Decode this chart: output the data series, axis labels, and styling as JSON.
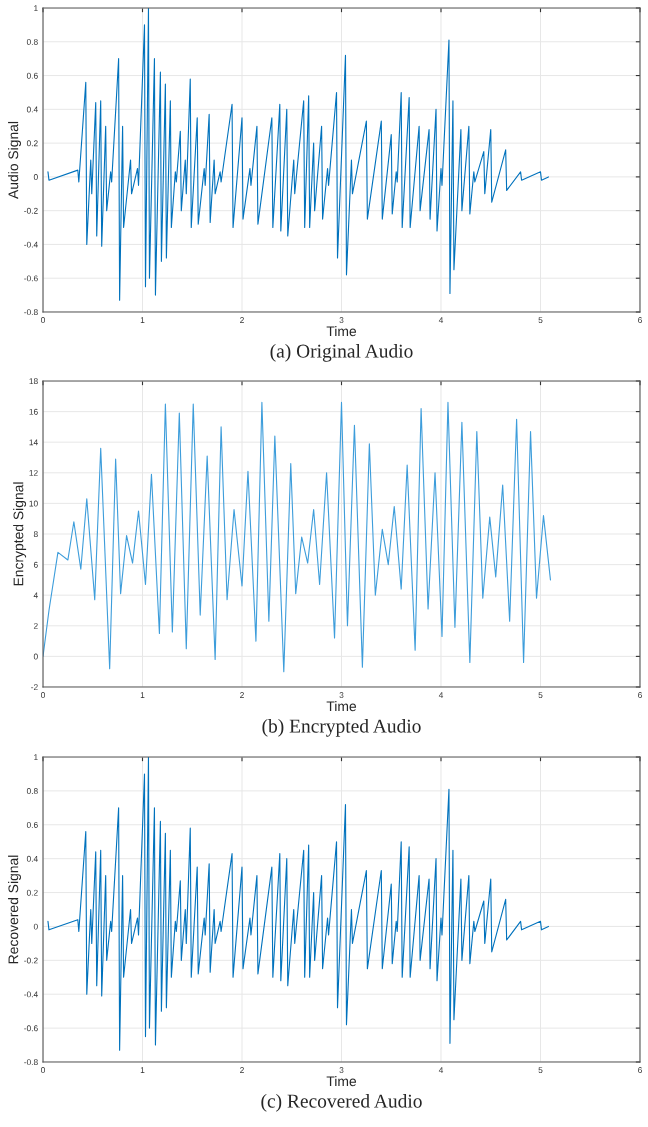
{
  "chart_data": [
    {
      "type": "line",
      "title": "(a) Original Audio",
      "xlabel": "Time",
      "ylabel": "Audio Signal",
      "xlim": [
        0,
        6
      ],
      "ylim": [
        -0.8,
        1
      ],
      "xticks": [
        0,
        1,
        2,
        3,
        4,
        5,
        6
      ],
      "yticks": [
        -0.8,
        -0.6,
        -0.4,
        -0.2,
        0,
        0.2,
        0.4,
        0.6,
        0.8,
        1
      ],
      "grid": true,
      "series": [
        {
          "color": "#0072bd",
          "x": [
            0.05,
            0.06,
            0.35,
            0.36,
            0.43,
            0.44,
            0.48,
            0.49,
            0.53,
            0.54,
            0.58,
            0.59,
            0.63,
            0.64,
            0.68,
            0.69,
            0.76,
            0.77,
            0.8,
            0.81,
            0.88,
            0.89,
            0.95,
            0.96,
            1.02,
            1.03,
            1.06,
            1.07,
            1.12,
            1.13,
            1.18,
            1.19,
            1.23,
            1.24,
            1.28,
            1.29,
            1.33,
            1.34,
            1.38,
            1.39,
            1.43,
            1.44,
            1.48,
            1.49,
            1.55,
            1.56,
            1.62,
            1.63,
            1.67,
            1.68,
            1.72,
            1.73,
            1.78,
            1.79,
            1.9,
            1.91,
            2.0,
            2.01,
            2.08,
            2.09,
            2.15,
            2.16,
            2.3,
            2.31,
            2.38,
            2.39,
            2.45,
            2.46,
            2.52,
            2.53,
            2.62,
            2.63,
            2.67,
            2.68,
            2.72,
            2.73,
            2.8,
            2.81,
            2.86,
            2.87,
            2.95,
            2.96,
            3.04,
            3.05,
            3.1,
            3.11,
            3.25,
            3.26,
            3.4,
            3.41,
            3.5,
            3.51,
            3.55,
            3.56,
            3.6,
            3.61,
            3.68,
            3.69,
            3.78,
            3.79,
            3.88,
            3.89,
            3.95,
            3.96,
            4.0,
            4.01,
            4.08,
            4.09,
            4.12,
            4.13,
            4.2,
            4.21,
            4.28,
            4.29,
            4.33,
            4.34,
            4.43,
            4.44,
            4.5,
            4.51,
            4.65,
            4.66,
            4.8,
            4.81,
            5.0,
            5.01,
            5.08
          ],
          "values": [
            0.03,
            -0.02,
            0.04,
            -0.03,
            0.56,
            -0.4,
            0.1,
            -0.1,
            0.44,
            -0.35,
            0.45,
            -0.41,
            0.3,
            -0.2,
            0.03,
            -0.03,
            0.7,
            -0.73,
            0.3,
            -0.3,
            0.1,
            -0.1,
            0.05,
            -0.05,
            0.9,
            -0.65,
            1.0,
            -0.6,
            0.7,
            -0.7,
            0.62,
            -0.5,
            0.55,
            -0.48,
            0.45,
            -0.3,
            0.03,
            -0.03,
            0.27,
            -0.2,
            0.1,
            -0.1,
            0.58,
            -0.3,
            0.35,
            -0.28,
            0.05,
            -0.05,
            0.37,
            -0.27,
            0.1,
            -0.1,
            0.03,
            -0.03,
            0.43,
            -0.3,
            0.35,
            -0.25,
            0.05,
            -0.05,
            0.3,
            -0.28,
            0.35,
            -0.3,
            0.43,
            -0.32,
            0.4,
            -0.35,
            0.1,
            -0.1,
            0.45,
            -0.3,
            0.48,
            -0.3,
            0.2,
            -0.2,
            0.3,
            -0.25,
            0.05,
            -0.05,
            0.5,
            -0.48,
            0.72,
            -0.58,
            0.1,
            -0.1,
            0.33,
            -0.25,
            0.33,
            -0.25,
            0.25,
            -0.22,
            0.03,
            -0.03,
            0.5,
            -0.3,
            0.47,
            -0.3,
            0.3,
            -0.2,
            0.28,
            -0.25,
            0.4,
            -0.32,
            0.05,
            -0.05,
            0.81,
            -0.69,
            0.45,
            -0.55,
            0.28,
            -0.2,
            0.3,
            -0.22,
            0.03,
            -0.03,
            0.15,
            -0.1,
            0.28,
            -0.15,
            0.16,
            -0.08,
            0.03,
            -0.02,
            0.03,
            -0.02,
            0
          ]
        }
      ]
    },
    {
      "type": "line",
      "title": "(b) Encrypted Audio",
      "xlabel": "Time",
      "ylabel": "Encrypted Signal",
      "xlim": [
        0,
        6
      ],
      "ylim": [
        -2,
        18
      ],
      "xticks": [
        0,
        1,
        2,
        3,
        4,
        5,
        6
      ],
      "yticks": [
        -2,
        0,
        2,
        4,
        6,
        8,
        10,
        12,
        14,
        16,
        18
      ],
      "grid": true,
      "series": [
        {
          "color": "#3d9ddb",
          "x": [
            0,
            0.06,
            0.15,
            0.25,
            0.31,
            0.38,
            0.44,
            0.52,
            0.58,
            0.67,
            0.73,
            0.78,
            0.84,
            0.9,
            0.96,
            1.03,
            1.09,
            1.17,
            1.23,
            1.3,
            1.37,
            1.44,
            1.51,
            1.58,
            1.65,
            1.73,
            1.79,
            1.85,
            1.92,
            2.0,
            2.06,
            2.14,
            2.2,
            2.27,
            2.33,
            2.42,
            2.49,
            2.54,
            2.6,
            2.66,
            2.72,
            2.78,
            2.85,
            2.93,
            3.0,
            3.06,
            3.13,
            3.21,
            3.28,
            3.34,
            3.41,
            3.47,
            3.53,
            3.6,
            3.66,
            3.74,
            3.8,
            3.87,
            3.94,
            4.01,
            4.07,
            4.14,
            4.21,
            4.29,
            4.36,
            4.42,
            4.49,
            4.55,
            4.62,
            4.69,
            4.76,
            4.83,
            4.9,
            4.96,
            5.03,
            5.1
          ],
          "values": [
            0,
            3,
            6.8,
            6.3,
            8.8,
            5.7,
            10.3,
            3.7,
            13.6,
            -0.8,
            12.9,
            4.1,
            7.9,
            6.1,
            9.5,
            4.7,
            11.9,
            1.5,
            16.5,
            1.6,
            15.9,
            0.5,
            16.5,
            2.7,
            13.1,
            -0.2,
            15.0,
            3.7,
            9.6,
            4.6,
            12.1,
            1.0,
            16.6,
            2.3,
            14.4,
            -1.0,
            12.6,
            4.1,
            7.8,
            6.1,
            9.6,
            4.7,
            12.0,
            1.2,
            16.6,
            2.0,
            15.1,
            -0.7,
            13.9,
            4.0,
            8.3,
            6.0,
            9.8,
            4.4,
            12.5,
            0.4,
            16.2,
            3.1,
            12.0,
            1.3,
            16.6,
            1.9,
            15.3,
            -0.4,
            14.7,
            3.8,
            9.1,
            5.2,
            11.2,
            2.3,
            15.5,
            -0.4,
            14.7,
            3.8,
            9.2,
            5.0
          ]
        }
      ]
    },
    {
      "type": "line",
      "title": "(c) Recovered Audio",
      "xlabel": "Time",
      "ylabel": "Recovered Signal",
      "xlim": [
        0,
        6
      ],
      "ylim": [
        -0.8,
        1
      ],
      "xticks": [
        0,
        1,
        2,
        3,
        4,
        5,
        6
      ],
      "yticks": [
        -0.8,
        -0.6,
        -0.4,
        -0.2,
        0,
        0.2,
        0.4,
        0.6,
        0.8,
        1
      ],
      "grid": true,
      "series": [
        {
          "color": "#0072bd",
          "x": [
            0.05,
            0.06,
            0.35,
            0.36,
            0.43,
            0.44,
            0.48,
            0.49,
            0.53,
            0.54,
            0.58,
            0.59,
            0.63,
            0.64,
            0.68,
            0.69,
            0.76,
            0.77,
            0.8,
            0.81,
            0.88,
            0.89,
            0.95,
            0.96,
            1.02,
            1.03,
            1.06,
            1.07,
            1.12,
            1.13,
            1.18,
            1.19,
            1.23,
            1.24,
            1.28,
            1.29,
            1.33,
            1.34,
            1.38,
            1.39,
            1.43,
            1.44,
            1.48,
            1.49,
            1.55,
            1.56,
            1.62,
            1.63,
            1.67,
            1.68,
            1.72,
            1.73,
            1.78,
            1.79,
            1.9,
            1.91,
            2.0,
            2.01,
            2.08,
            2.09,
            2.15,
            2.16,
            2.3,
            2.31,
            2.38,
            2.39,
            2.45,
            2.46,
            2.52,
            2.53,
            2.62,
            2.63,
            2.67,
            2.68,
            2.72,
            2.73,
            2.8,
            2.81,
            2.86,
            2.87,
            2.95,
            2.96,
            3.04,
            3.05,
            3.1,
            3.11,
            3.25,
            3.26,
            3.4,
            3.41,
            3.5,
            3.51,
            3.55,
            3.56,
            3.6,
            3.61,
            3.68,
            3.69,
            3.78,
            3.79,
            3.88,
            3.89,
            3.95,
            3.96,
            4.0,
            4.01,
            4.08,
            4.09,
            4.12,
            4.13,
            4.2,
            4.21,
            4.28,
            4.29,
            4.33,
            4.34,
            4.43,
            4.44,
            4.5,
            4.51,
            4.65,
            4.66,
            4.8,
            4.81,
            5.0,
            5.01,
            5.08
          ],
          "values": [
            0.03,
            -0.02,
            0.04,
            -0.03,
            0.56,
            -0.4,
            0.1,
            -0.1,
            0.44,
            -0.35,
            0.45,
            -0.41,
            0.3,
            -0.2,
            0.03,
            -0.03,
            0.7,
            -0.73,
            0.3,
            -0.3,
            0.1,
            -0.1,
            0.05,
            -0.05,
            0.9,
            -0.65,
            1.0,
            -0.6,
            0.7,
            -0.7,
            0.62,
            -0.5,
            0.55,
            -0.48,
            0.45,
            -0.3,
            0.03,
            -0.03,
            0.27,
            -0.2,
            0.1,
            -0.1,
            0.58,
            -0.3,
            0.35,
            -0.28,
            0.05,
            -0.05,
            0.37,
            -0.27,
            0.1,
            -0.1,
            0.03,
            -0.03,
            0.43,
            -0.3,
            0.35,
            -0.25,
            0.05,
            -0.05,
            0.3,
            -0.28,
            0.35,
            -0.3,
            0.43,
            -0.32,
            0.4,
            -0.35,
            0.1,
            -0.1,
            0.45,
            -0.3,
            0.48,
            -0.3,
            0.2,
            -0.2,
            0.3,
            -0.25,
            0.05,
            -0.05,
            0.5,
            -0.48,
            0.72,
            -0.58,
            0.1,
            -0.1,
            0.33,
            -0.25,
            0.33,
            -0.25,
            0.25,
            -0.22,
            0.03,
            -0.03,
            0.5,
            -0.3,
            0.47,
            -0.3,
            0.3,
            -0.2,
            0.28,
            -0.25,
            0.4,
            -0.32,
            0.05,
            -0.05,
            0.81,
            -0.69,
            0.45,
            -0.55,
            0.28,
            -0.2,
            0.3,
            -0.22,
            0.03,
            -0.03,
            0.15,
            -0.1,
            0.28,
            -0.15,
            0.16,
            -0.08,
            0.03,
            -0.02,
            0.03,
            -0.02,
            0
          ]
        }
      ]
    }
  ]
}
